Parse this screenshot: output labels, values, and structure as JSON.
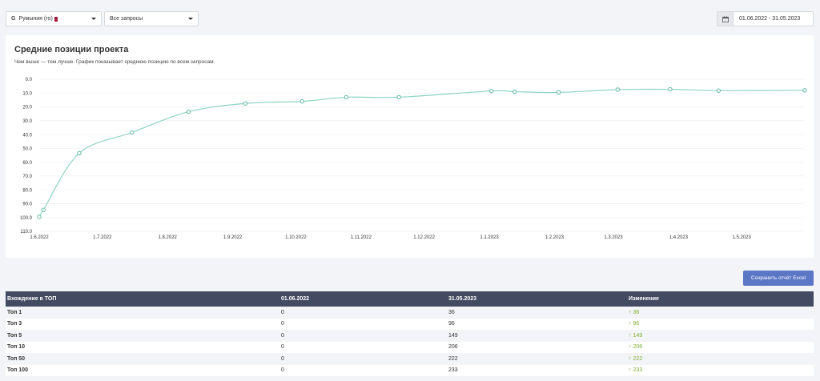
{
  "filters": {
    "region_icon": "G",
    "region_label": "Румыния (ro)",
    "query_label": "Все запросы"
  },
  "date_range": "01.06.2022 - 31.05.2023",
  "chart_card": {
    "title": "Средние позиции проекта",
    "subtitle": "Чем выше — тем лучше. График показывает среднюю позицию по всем запросам."
  },
  "export_button_label": "Сохранить отчёт Excel",
  "colors": {
    "line": "#8ed4c2",
    "marker": "#5fb89f",
    "header_bg": "#434a61",
    "button": "#5b76c4",
    "positive": "#7cad2e"
  },
  "chart_data": {
    "type": "line",
    "title": "Средние позиции проекта",
    "y_inverted": true,
    "ylim": [
      0,
      110
    ],
    "y_ticks": [
      "0.0",
      "10.0",
      "20.0",
      "30.0",
      "40.0",
      "50.0",
      "60.0",
      "70.0",
      "80.0",
      "90.0",
      "100.0",
      "110.0"
    ],
    "x_ticks": [
      "1.6.2022",
      "1.7.2022",
      "1.8.2022",
      "1.9.2022",
      "1.10.2022",
      "1.11.2022",
      "1.12.2022",
      "1.1.2023",
      "1.2.2023",
      "1.3.2023",
      "1.4.2023",
      "1.5.2023"
    ],
    "grid": true,
    "series": [
      {
        "points": [
          {
            "x": "2022-06-01",
            "y": 99.5
          },
          {
            "x": "2022-06-03",
            "y": 94.5
          },
          {
            "x": "2022-06-20",
            "y": 53.5
          },
          {
            "x": "2022-07-15",
            "y": 38.5
          },
          {
            "x": "2022-08-11",
            "y": 23.5
          },
          {
            "x": "2022-09-07",
            "y": 17.5
          },
          {
            "x": "2022-10-04",
            "y": 16.0
          },
          {
            "x": "2022-10-25",
            "y": 13.0
          },
          {
            "x": "2022-11-19",
            "y": 13.0
          },
          {
            "x": "2023-01-02",
            "y": 8.5
          },
          {
            "x": "2023-01-13",
            "y": 9.0
          },
          {
            "x": "2023-02-03",
            "y": 9.5
          },
          {
            "x": "2023-03-03",
            "y": 7.5
          },
          {
            "x": "2023-03-28",
            "y": 7.3
          },
          {
            "x": "2023-04-20",
            "y": 8.2
          },
          {
            "x": "2023-05-31",
            "y": 8.0
          }
        ]
      }
    ]
  },
  "top_table": {
    "headers": [
      "Вхождение в ТОП",
      "01.06.2022",
      "31.05.2023",
      "Изменение"
    ],
    "rows": [
      {
        "label": "Топ 1",
        "start": "0",
        "end": "36",
        "change": "↑ 36"
      },
      {
        "label": "Топ 3",
        "start": "0",
        "end": "96",
        "change": "↑ 96"
      },
      {
        "label": "Топ 5",
        "start": "0",
        "end": "149",
        "change": "↑ 149"
      },
      {
        "label": "Топ 10",
        "start": "0",
        "end": "206",
        "change": "↑ 206"
      },
      {
        "label": "Топ 50",
        "start": "0",
        "end": "222",
        "change": "↑ 222"
      },
      {
        "label": "Топ 100",
        "start": "0",
        "end": "233",
        "change": "↑ 233"
      }
    ]
  }
}
